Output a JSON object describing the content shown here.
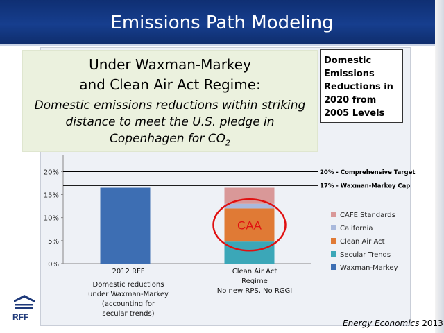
{
  "slide": {
    "title": "Emissions Path Modeling",
    "callout_line1": "Under Waxman-Markey",
    "callout_line2": "and Clean Air Act Regime:",
    "callout_em": "Domestic",
    "callout_body1": " emissions reductions within striking",
    "callout_body2": "distance to meet the U.S. pledge in",
    "callout_body3a": "Copenhagen for CO",
    "callout_body3b": "2",
    "box_note": "Domestic Emissions Reductions in 2020 from 2005 Levels",
    "logo_text": "RFF",
    "credit_italic": "Energy Economics",
    "credit_year": " 2013"
  },
  "category_labels": {
    "cat1_line1": "2012 RFF",
    "cat1_line2": "Domestic reductions",
    "cat1_line3": "under Waxman-Markey",
    "cat1_line4": "(accounting for",
    "cat1_line5": "secular trends)",
    "cat2_line1": "Clean Air Act",
    "cat2_line2": "Regime",
    "cat2_line3": "No new RPS, No RGGI"
  },
  "chart_data": {
    "type": "bar",
    "stacked": true,
    "categories": [
      "2012 RFF",
      "Clean Air Act Regime"
    ],
    "series": [
      {
        "name": "Waxman-Markey",
        "color": "#3d6eb3",
        "values": [
          16.5,
          0
        ]
      },
      {
        "name": "Secular Trends",
        "color": "#3ba7b8",
        "values": [
          0,
          4.8
        ]
      },
      {
        "name": "Clean Air Act",
        "color": "#e07a35",
        "values": [
          0,
          7.2
        ]
      },
      {
        "name": "California",
        "color": "#a9b9dc",
        "values": [
          0,
          1.0
        ]
      },
      {
        "name": "CAFE Standards",
        "color": "#d99898",
        "values": [
          0,
          3.5
        ]
      }
    ],
    "ylim": [
      0,
      22
    ],
    "yticks": [
      0,
      5,
      10,
      15,
      20
    ],
    "ytick_labels": [
      "0%",
      "5%",
      "10%",
      "15%",
      "20%"
    ],
    "reference_lines": [
      {
        "value": 20,
        "label": "20% - Comprehensive Target"
      },
      {
        "value": 17,
        "label": "17% - Waxman-Markey Cap"
      }
    ],
    "annotation": {
      "text": "CAA",
      "color": "#e01010"
    },
    "legend_position": "right",
    "legend_order": [
      "CAFE Standards",
      "California",
      "Clean Air Act",
      "Secular Trends",
      "Waxman-Markey"
    ]
  }
}
